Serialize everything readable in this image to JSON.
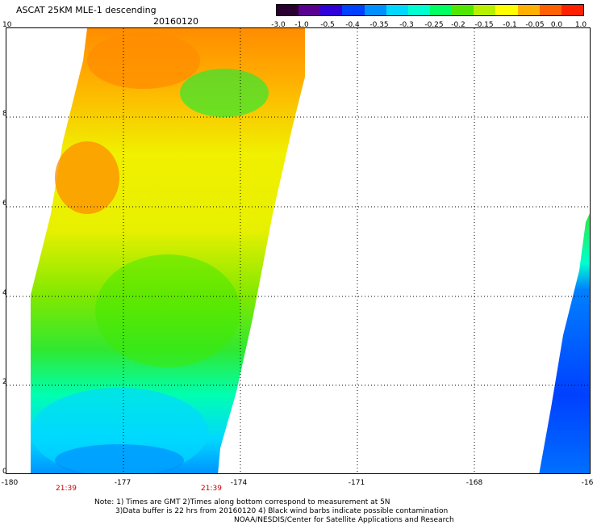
{
  "header": {
    "title": "ASCAT 25KM MLE-1 descending",
    "date": "20160120"
  },
  "colorbar": {
    "tick_labels": [
      "-3.0",
      "-1.0",
      "-0.5",
      "-0.4",
      "-0.35",
      "-0.3",
      "-0.25",
      "-0.2",
      "-0.15",
      "-0.1",
      "-0.05",
      "0.0",
      "1.0"
    ],
    "colors": [
      "#2a0030",
      "#5a0090",
      "#3000d8",
      "#0040ff",
      "#0090ff",
      "#00d8ff",
      "#00ffd0",
      "#00ff60",
      "#50e800",
      "#b8f000",
      "#ffff00",
      "#ffb000",
      "#ff6000",
      "#ff2000"
    ]
  },
  "axes": {
    "y_ticks": [
      "10",
      "8",
      "6",
      "4",
      "2",
      "0"
    ],
    "x_ticks": [
      "-180",
      "-177",
      "-174",
      "-171",
      "-168",
      "-16"
    ],
    "time_labels": [
      "21:39",
      "21:39"
    ]
  },
  "notes": {
    "line1": "Note: 1) Times are GMT 2)Times along bottom correspond to measurement at 5N",
    "line2": "3)Data buffer is 22 hrs from 20160120 4) Black wind barbs indicate possible contamination",
    "line3": "NOAA/NESDIS/Center for Satellite Applications and Research"
  }
}
